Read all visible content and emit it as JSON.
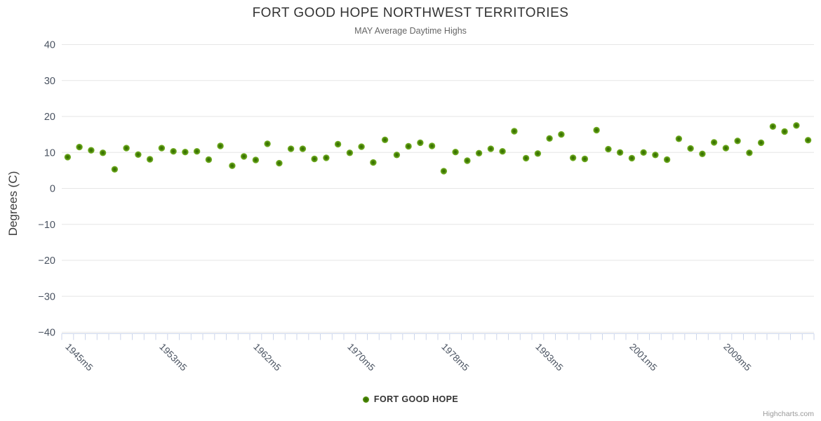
{
  "chart": {
    "title": "FORT GOOD HOPE NORTHWEST TERRITORIES",
    "subtitle": "MAY Average Daytime Highs",
    "y_axis_title": "Degrees (C)",
    "credits": "Highcharts.com",
    "legend": {
      "label": "FORT GOOD HOPE"
    }
  },
  "colors": {
    "grid": "#e6e6e6",
    "tick": "#ccd6eb",
    "axis_label": "#4a5361",
    "title": "#333333",
    "subtitle": "#666666",
    "legend_text": "#333333",
    "credits": "#999999",
    "marker_outer": "#7cb82d",
    "marker_mid": "#457f04",
    "marker_core": "#2e6b00"
  },
  "chart_data": {
    "type": "scatter",
    "title": "FORT GOOD HOPE NORTHWEST TERRITORIES",
    "subtitle": "MAY Average Daytime Highs",
    "xlabel": "",
    "ylabel": "Degrees (C)",
    "ylim": [
      -40,
      40
    ],
    "y_tick_interval": 10,
    "y_tick_labels": [
      "40",
      "30",
      "20",
      "10",
      "0",
      "−10",
      "−20",
      "−30",
      "−40"
    ],
    "grid": true,
    "legend_position": "bottom-center",
    "point_count": 64,
    "x_tick_labels": [
      {
        "index": 0,
        "label": "1945m5"
      },
      {
        "index": 8,
        "label": "1953m5"
      },
      {
        "index": 16,
        "label": "1962m5"
      },
      {
        "index": 24,
        "label": "1970m5"
      },
      {
        "index": 32,
        "label": "1978m5"
      },
      {
        "index": 40,
        "label": "1993m5"
      },
      {
        "index": 48,
        "label": "2001m5"
      },
      {
        "index": 56,
        "label": "2009m5"
      }
    ],
    "series": [
      {
        "name": "FORT GOOD HOPE",
        "color": "#7cb82d",
        "marker_core_color": "#2e6b00",
        "values": [
          8.7,
          11.5,
          10.6,
          9.9,
          5.3,
          11.2,
          9.4,
          8.1,
          11.2,
          10.3,
          10.1,
          10.3,
          8.0,
          11.8,
          6.3,
          8.9,
          7.9,
          12.4,
          7.0,
          11.0,
          11.0,
          8.2,
          8.5,
          12.3,
          9.9,
          11.6,
          7.2,
          13.5,
          9.3,
          11.7,
          12.7,
          11.8,
          4.8,
          10.1,
          7.7,
          9.8,
          11.0,
          10.3,
          15.9,
          8.4,
          9.7,
          13.9,
          15.0,
          8.5,
          8.2,
          16.2,
          10.9,
          10.0,
          8.4,
          10.0,
          9.3,
          8.0,
          13.8,
          11.1,
          9.6,
          12.8,
          11.2,
          13.2,
          9.9,
          12.7,
          17.2,
          15.8,
          17.5,
          13.4
        ]
      }
    ]
  }
}
